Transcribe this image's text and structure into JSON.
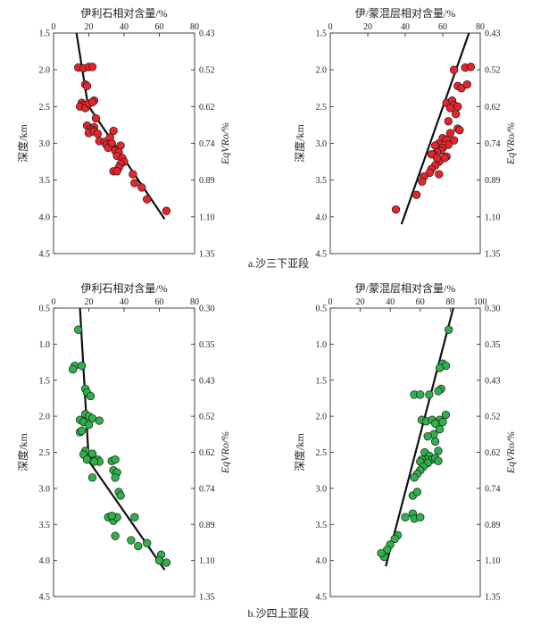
{
  "captions": {
    "top": "a.沙三下亚段",
    "bottom": "b.沙四上亚段"
  },
  "colors": {
    "red_points": "#e8242b",
    "green_points": "#2eb14a",
    "trend": "#111111",
    "frame": "#333333"
  },
  "chart_data": [
    {
      "type": "scatter",
      "panel": "a-left",
      "title": "伊利石相对含量/%",
      "xlabel": "伊利石相对含量/%",
      "ylabel": "深度/km",
      "y2label": "EqVRo/%",
      "xlim": [
        0,
        80
      ],
      "xticks": [
        "0",
        "20",
        "40",
        "60",
        "80"
      ],
      "ylim": [
        1.5,
        4.5
      ],
      "yticks": [
        "1.5",
        "2.0",
        "2.5",
        "3.0",
        "3.5",
        "4.0",
        "4.5"
      ],
      "y2ticks": [
        "0.43",
        "0.52",
        "0.62",
        "0.74",
        "0.89",
        "1.10",
        "1.35"
      ],
      "point_color": "red",
      "x": [
        14,
        17,
        20,
        22,
        18,
        19,
        16,
        17,
        15,
        18,
        20,
        23,
        22,
        24,
        19,
        21,
        23,
        22,
        20,
        23,
        25,
        26,
        29,
        30,
        31,
        34,
        32,
        33,
        38,
        35,
        37,
        36,
        39,
        40,
        38,
        37,
        34,
        36,
        45,
        46,
        50,
        53,
        64
      ],
      "y": [
        1.97,
        1.98,
        1.96,
        1.96,
        2.2,
        2.22,
        2.45,
        2.48,
        2.5,
        2.52,
        2.46,
        2.42,
        2.44,
        2.66,
        2.76,
        2.8,
        2.78,
        2.82,
        2.86,
        2.84,
        2.87,
        2.97,
        2.98,
        3.02,
        3.06,
        2.83,
        2.92,
        3.0,
        3.03,
        3.1,
        3.12,
        3.17,
        3.2,
        3.25,
        3.28,
        3.33,
        3.38,
        3.38,
        3.42,
        3.54,
        3.6,
        3.76,
        3.92
      ],
      "trend": [
        {
          "x": 13,
          "y": 1.5
        },
        {
          "x": 19.5,
          "y": 2.48
        },
        {
          "x": 63,
          "y": 4.03
        }
      ]
    },
    {
      "type": "scatter",
      "panel": "a-right",
      "title": "伊/蒙混层相对含量/%",
      "xlabel": "伊/蒙混层相对含量/%",
      "ylabel": "深度/km",
      "y2label": "EqVRo/%",
      "xlim": [
        0,
        80
      ],
      "xticks": [
        "0",
        "20",
        "40",
        "60",
        "80"
      ],
      "ylim": [
        1.5,
        4.5
      ],
      "yticks": [
        "1.5",
        "2.0",
        "2.5",
        "3.0",
        "3.5",
        "4.0",
        "4.5"
      ],
      "y2ticks": [
        "0.43",
        "0.52",
        "0.62",
        "0.74",
        "0.89",
        "1.10",
        "1.35"
      ],
      "point_color": "red",
      "x": [
        66,
        72,
        75,
        68,
        70,
        73,
        62,
        65,
        66,
        68,
        64,
        67,
        63,
        68,
        69,
        64,
        60,
        62,
        66,
        58,
        56,
        63,
        60,
        59,
        57,
        55,
        62,
        61,
        58,
        56,
        54,
        53,
        58,
        54,
        57,
        50,
        49,
        46,
        35
      ],
      "y": [
        2.0,
        1.97,
        1.96,
        2.22,
        2.25,
        2.2,
        2.45,
        2.42,
        2.48,
        2.5,
        2.52,
        2.6,
        2.7,
        2.8,
        2.82,
        2.86,
        2.93,
        2.95,
        2.96,
        3.0,
        3.03,
        3.02,
        3.06,
        3.1,
        3.12,
        3.15,
        3.18,
        3.2,
        3.25,
        3.3,
        3.35,
        3.4,
        3.42,
        3.15,
        3.2,
        3.45,
        3.52,
        3.7,
        3.9
      ],
      "trend": [
        {
          "x": 38,
          "y": 4.1
        },
        {
          "x": 74,
          "y": 1.5
        }
      ]
    },
    {
      "type": "scatter",
      "panel": "b-left",
      "title": "伊利石相对含量/%",
      "xlabel": "伊利石相对含量/%",
      "ylabel": "深度/km",
      "y2label": "EqVRo/%",
      "xlim": [
        0,
        80
      ],
      "xticks": [
        "0",
        "20",
        "40",
        "60",
        "80"
      ],
      "ylim": [
        0.5,
        4.5
      ],
      "yticks": [
        "0.5",
        "1.0",
        "1.5",
        "2.0",
        "2.5",
        "3.0",
        "3.5",
        "4.0",
        "4.5"
      ],
      "y2ticks": [
        "0.30",
        "0.35",
        "0.43",
        "0.52",
        "0.62",
        "0.74",
        "0.89",
        "1.10",
        "1.35"
      ],
      "point_color": "green",
      "x": [
        14,
        12,
        11,
        16,
        18,
        19,
        21,
        18,
        20,
        15,
        17,
        22,
        26,
        20,
        15,
        16,
        18,
        17,
        20,
        22,
        19,
        23,
        25,
        26,
        22,
        23,
        33,
        35,
        34,
        36,
        35,
        37,
        38,
        31,
        34,
        36,
        33,
        35,
        46,
        44,
        48,
        53,
        61,
        60,
        64
      ],
      "y": [
        0.8,
        1.3,
        1.35,
        1.3,
        1.62,
        1.67,
        1.72,
        1.97,
        2.0,
        2.05,
        2.08,
        2.03,
        2.06,
        2.12,
        2.22,
        2.2,
        2.48,
        2.53,
        2.58,
        2.52,
        2.6,
        2.62,
        2.6,
        2.63,
        2.85,
        2.63,
        2.62,
        2.6,
        2.75,
        2.78,
        2.85,
        3.05,
        3.1,
        3.4,
        3.45,
        3.4,
        3.38,
        3.66,
        3.4,
        3.72,
        3.8,
        3.76,
        3.92,
        4.0,
        4.03
      ],
      "trend": [
        {
          "x": 15,
          "y": 0.5
        },
        {
          "x": 20,
          "y": 2.62
        },
        {
          "x": 63,
          "y": 4.13
        }
      ]
    },
    {
      "type": "scatter",
      "panel": "b-right",
      "title": "伊/蒙混层相对含量/%",
      "xlabel": "伊/蒙混层相对含量/%",
      "ylabel": "深度/km",
      "y2label": "EqVRo/%",
      "xlim": [
        0,
        100
      ],
      "xticks": [
        "0",
        "20",
        "40",
        "60",
        "80",
        "100"
      ],
      "ylim": [
        0.5,
        4.5
      ],
      "yticks": [
        "0.5",
        "1.0",
        "1.5",
        "2.0",
        "2.5",
        "3.0",
        "3.5",
        "4.0",
        "4.5"
      ],
      "y2ticks": [
        "0.30",
        "0.35",
        "0.43",
        "0.52",
        "0.62",
        "0.74",
        "0.89",
        "1.10",
        "1.35"
      ],
      "point_color": "green",
      "x": [
        79,
        75,
        77,
        73,
        74,
        72,
        56,
        60,
        66,
        77,
        73,
        75,
        61,
        64,
        68,
        70,
        73,
        69,
        65,
        70,
        72,
        63,
        66,
        64,
        61,
        60,
        68,
        70,
        72,
        65,
        62,
        60,
        58,
        56,
        55,
        58,
        50,
        55,
        56,
        60,
        45,
        43,
        40,
        38,
        36,
        34
      ],
      "y": [
        0.8,
        1.27,
        1.3,
        1.33,
        1.62,
        1.65,
        1.7,
        1.7,
        1.7,
        1.98,
        2.05,
        2.08,
        2.05,
        2.07,
        2.05,
        2.1,
        2.18,
        2.25,
        2.28,
        2.35,
        2.48,
        2.5,
        2.55,
        2.6,
        2.6,
        2.63,
        2.6,
        2.58,
        2.62,
        2.65,
        2.7,
        2.75,
        2.8,
        2.85,
        3.1,
        3.05,
        3.4,
        3.35,
        3.42,
        3.4,
        3.65,
        3.7,
        3.78,
        3.85,
        3.95,
        3.9
      ],
      "trend": [
        {
          "x": 37,
          "y": 4.08
        },
        {
          "x": 82,
          "y": 0.5
        }
      ]
    }
  ]
}
